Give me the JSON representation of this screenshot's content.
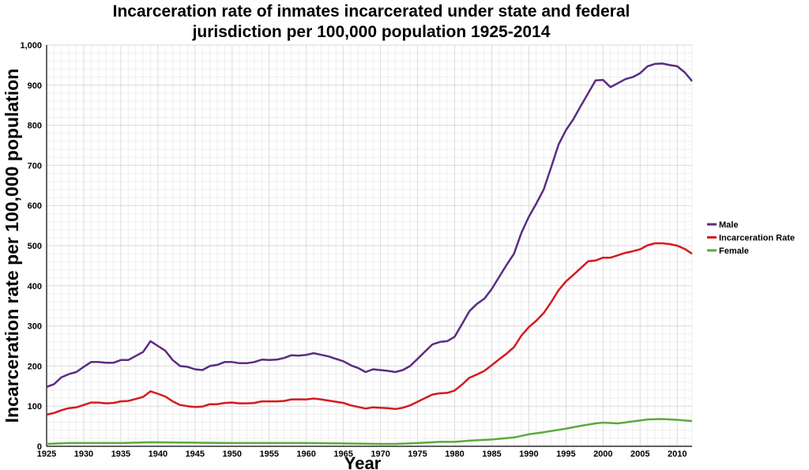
{
  "chart_data": {
    "type": "line",
    "title_line1": "Incarceration rate of inmates incarcerated under state and federal",
    "title_line2": "jurisdiction per 100,000 population 1925-2014",
    "xlabel": "Year",
    "ylabel": "Incarceration rate per 100,000 population",
    "xlim": [
      1925,
      2012
    ],
    "ylim": [
      0,
      1000
    ],
    "x_ticks": [
      1925,
      1930,
      1935,
      1940,
      1945,
      1950,
      1955,
      1960,
      1965,
      1970,
      1975,
      1980,
      1985,
      1990,
      1995,
      2000,
      2005,
      2010
    ],
    "y_ticks": [
      0,
      100,
      200,
      300,
      400,
      500,
      600,
      700,
      800,
      900,
      1000
    ],
    "grid": true,
    "legend_position": "right",
    "series": [
      {
        "name": "Male",
        "color": "#5b2c83",
        "points": [
          [
            1925,
            148
          ],
          [
            1926,
            155
          ],
          [
            1927,
            172
          ],
          [
            1928,
            180
          ],
          [
            1929,
            185
          ],
          [
            1930,
            198
          ],
          [
            1931,
            210
          ],
          [
            1932,
            210
          ],
          [
            1933,
            208
          ],
          [
            1934,
            208
          ],
          [
            1935,
            215
          ],
          [
            1936,
            215
          ],
          [
            1937,
            225
          ],
          [
            1938,
            235
          ],
          [
            1939,
            262
          ],
          [
            1940,
            250
          ],
          [
            1941,
            238
          ],
          [
            1942,
            215
          ],
          [
            1943,
            200
          ],
          [
            1944,
            198
          ],
          [
            1945,
            192
          ],
          [
            1946,
            190
          ],
          [
            1947,
            200
          ],
          [
            1948,
            203
          ],
          [
            1949,
            210
          ],
          [
            1950,
            210
          ],
          [
            1951,
            207
          ],
          [
            1952,
            207
          ],
          [
            1953,
            210
          ],
          [
            1954,
            216
          ],
          [
            1955,
            215
          ],
          [
            1956,
            216
          ],
          [
            1957,
            220
          ],
          [
            1958,
            227
          ],
          [
            1959,
            226
          ],
          [
            1960,
            228
          ],
          [
            1961,
            232
          ],
          [
            1962,
            228
          ],
          [
            1963,
            224
          ],
          [
            1964,
            218
          ],
          [
            1965,
            212
          ],
          [
            1966,
            202
          ],
          [
            1967,
            195
          ],
          [
            1968,
            185
          ],
          [
            1969,
            192
          ],
          [
            1970,
            190
          ],
          [
            1971,
            188
          ],
          [
            1972,
            185
          ],
          [
            1973,
            190
          ],
          [
            1974,
            200
          ],
          [
            1975,
            218
          ],
          [
            1976,
            236
          ],
          [
            1977,
            254
          ],
          [
            1978,
            260
          ],
          [
            1979,
            262
          ],
          [
            1980,
            273
          ],
          [
            1981,
            305
          ],
          [
            1982,
            337
          ],
          [
            1983,
            355
          ],
          [
            1984,
            368
          ],
          [
            1985,
            392
          ],
          [
            1986,
            422
          ],
          [
            1987,
            452
          ],
          [
            1988,
            480
          ],
          [
            1989,
            532
          ],
          [
            1990,
            572
          ],
          [
            1991,
            605
          ],
          [
            1992,
            640
          ],
          [
            1993,
            695
          ],
          [
            1994,
            752
          ],
          [
            1995,
            788
          ],
          [
            1996,
            815
          ],
          [
            1997,
            848
          ],
          [
            1998,
            880
          ],
          [
            1999,
            912
          ],
          [
            2000,
            913
          ],
          [
            2001,
            895
          ],
          [
            2002,
            905
          ],
          [
            2003,
            915
          ],
          [
            2004,
            920
          ],
          [
            2005,
            930
          ],
          [
            2006,
            947
          ],
          [
            2007,
            953
          ],
          [
            2008,
            954
          ],
          [
            2009,
            950
          ],
          [
            2010,
            947
          ],
          [
            2011,
            932
          ],
          [
            2012,
            910
          ]
        ]
      },
      {
        "name": "Incarceration Rate",
        "color": "#d7191c",
        "points": [
          [
            1925,
            79
          ],
          [
            1926,
            83
          ],
          [
            1927,
            90
          ],
          [
            1928,
            95
          ],
          [
            1929,
            97
          ],
          [
            1930,
            103
          ],
          [
            1931,
            109
          ],
          [
            1932,
            109
          ],
          [
            1933,
            107
          ],
          [
            1934,
            108
          ],
          [
            1935,
            112
          ],
          [
            1936,
            113
          ],
          [
            1937,
            118
          ],
          [
            1938,
            123
          ],
          [
            1939,
            137
          ],
          [
            1940,
            131
          ],
          [
            1941,
            124
          ],
          [
            1942,
            112
          ],
          [
            1943,
            103
          ],
          [
            1944,
            100
          ],
          [
            1945,
            98
          ],
          [
            1946,
            99
          ],
          [
            1947,
            105
          ],
          [
            1948,
            105
          ],
          [
            1949,
            108
          ],
          [
            1950,
            109
          ],
          [
            1951,
            107
          ],
          [
            1952,
            107
          ],
          [
            1953,
            108
          ],
          [
            1954,
            112
          ],
          [
            1955,
            112
          ],
          [
            1956,
            112
          ],
          [
            1957,
            113
          ],
          [
            1958,
            117
          ],
          [
            1959,
            117
          ],
          [
            1960,
            117
          ],
          [
            1961,
            119
          ],
          [
            1962,
            117
          ],
          [
            1963,
            114
          ],
          [
            1964,
            111
          ],
          [
            1965,
            108
          ],
          [
            1966,
            102
          ],
          [
            1967,
            98
          ],
          [
            1968,
            94
          ],
          [
            1969,
            97
          ],
          [
            1970,
            96
          ],
          [
            1971,
            95
          ],
          [
            1972,
            93
          ],
          [
            1973,
            96
          ],
          [
            1974,
            102
          ],
          [
            1975,
            111
          ],
          [
            1976,
            120
          ],
          [
            1977,
            129
          ],
          [
            1978,
            132
          ],
          [
            1979,
            133
          ],
          [
            1980,
            139
          ],
          [
            1981,
            154
          ],
          [
            1982,
            171
          ],
          [
            1983,
            179
          ],
          [
            1984,
            188
          ],
          [
            1985,
            202
          ],
          [
            1986,
            217
          ],
          [
            1987,
            231
          ],
          [
            1988,
            247
          ],
          [
            1989,
            276
          ],
          [
            1990,
            297
          ],
          [
            1991,
            313
          ],
          [
            1992,
            332
          ],
          [
            1993,
            359
          ],
          [
            1994,
            389
          ],
          [
            1995,
            411
          ],
          [
            1996,
            427
          ],
          [
            1997,
            444
          ],
          [
            1998,
            461
          ],
          [
            1999,
            463
          ],
          [
            2000,
            470
          ],
          [
            2001,
            470
          ],
          [
            2002,
            476
          ],
          [
            2003,
            482
          ],
          [
            2004,
            486
          ],
          [
            2005,
            491
          ],
          [
            2006,
            501
          ],
          [
            2007,
            506
          ],
          [
            2008,
            506
          ],
          [
            2009,
            504
          ],
          [
            2010,
            500
          ],
          [
            2011,
            492
          ],
          [
            2012,
            480
          ]
        ]
      },
      {
        "name": "Female",
        "color": "#5aab3c",
        "points": [
          [
            1925,
            6
          ],
          [
            1928,
            8
          ],
          [
            1935,
            8
          ],
          [
            1939,
            10
          ],
          [
            1945,
            9
          ],
          [
            1950,
            8
          ],
          [
            1955,
            8
          ],
          [
            1960,
            8
          ],
          [
            1965,
            7
          ],
          [
            1970,
            6
          ],
          [
            1972,
            6
          ],
          [
            1975,
            8
          ],
          [
            1978,
            11
          ],
          [
            1980,
            11
          ],
          [
            1982,
            14
          ],
          [
            1985,
            17
          ],
          [
            1988,
            22
          ],
          [
            1990,
            30
          ],
          [
            1992,
            35
          ],
          [
            1995,
            44
          ],
          [
            1997,
            51
          ],
          [
            1999,
            57
          ],
          [
            2000,
            59
          ],
          [
            2002,
            57
          ],
          [
            2004,
            62
          ],
          [
            2006,
            67
          ],
          [
            2008,
            68
          ],
          [
            2010,
            66
          ],
          [
            2012,
            63
          ]
        ]
      }
    ]
  }
}
